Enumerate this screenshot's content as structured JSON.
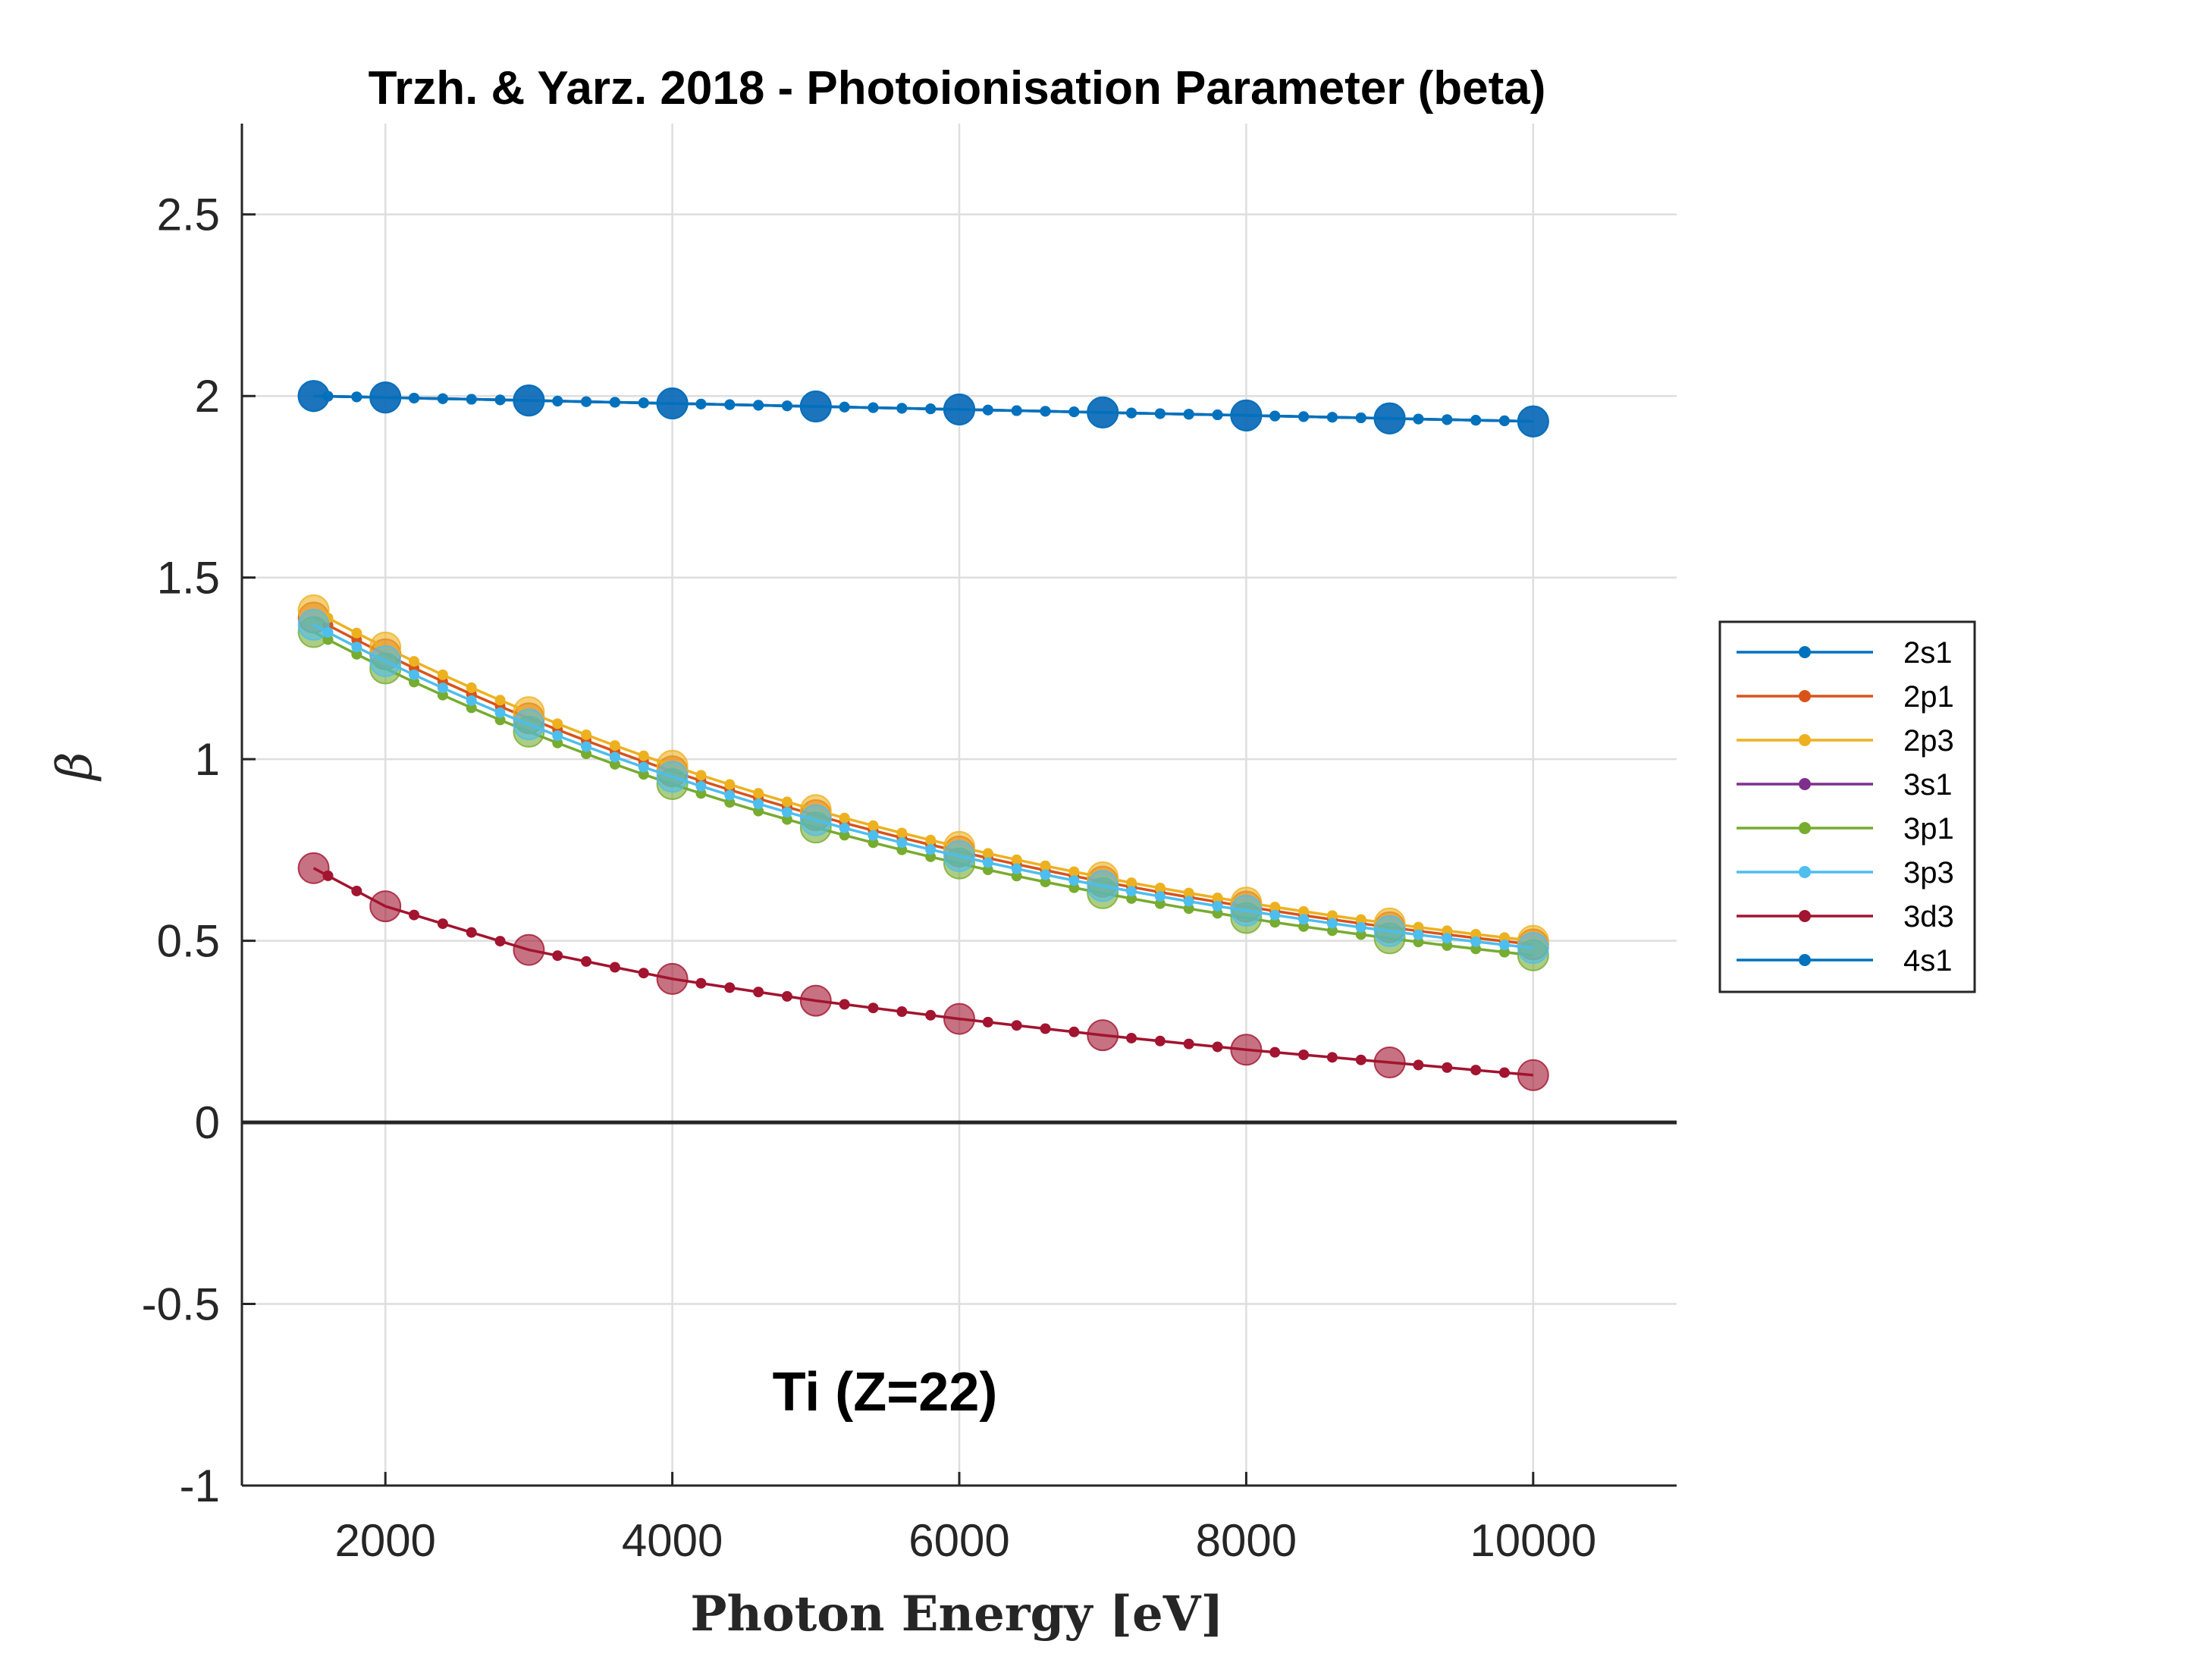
{
  "chart_data": {
    "type": "line",
    "title": "Trzh. & Yarz. 2018 - Photoionisation Parameter (beta)",
    "xlabel": "Photon Energy [eV]",
    "ylabel": "β",
    "annotation": "Ti (Z=22)",
    "xlim": [
      1000,
      11000
    ],
    "ylim": [
      -1,
      2.75
    ],
    "xticks": [
      2000,
      4000,
      6000,
      8000,
      10000
    ],
    "xtick_labels": [
      "2000",
      "4000",
      "6000",
      "8000",
      "10000"
    ],
    "yticks": [
      -1,
      -0.5,
      0,
      0.5,
      1,
      1.5,
      2,
      2.5
    ],
    "ytick_labels": [
      "-1",
      "-0.5",
      "0",
      "0.5",
      "1",
      "1.5",
      "2",
      "2.5"
    ],
    "grid": true,
    "zero_line": true,
    "legend_position": "right",
    "x_big_markers": [
      1500,
      2000,
      3000,
      4000,
      5000,
      6000,
      7000,
      8000,
      9000,
      10000
    ],
    "series": [
      {
        "name": "2s1",
        "color": "#0072BD",
        "endpoints": [
          2.0,
          1.93
        ]
      },
      {
        "name": "2p1",
        "color": "#D95319",
        "endpoints": [
          1.39,
          0.49
        ]
      },
      {
        "name": "2p3",
        "color": "#EDB120",
        "endpoints": [
          1.41,
          0.5
        ]
      },
      {
        "name": "3s1",
        "color": "#7E2F8E",
        "endpoints": [
          2.0,
          1.93
        ]
      },
      {
        "name": "3p1",
        "color": "#77AC30",
        "endpoints": [
          1.35,
          0.46
        ]
      },
      {
        "name": "3p3",
        "color": "#4DBEEE",
        "endpoints": [
          1.37,
          0.48
        ]
      },
      {
        "name": "3d3",
        "color": "#A2142F",
        "values": [
          0.7,
          0.595,
          0.475,
          0.395,
          0.335,
          0.285,
          0.24,
          0.2,
          0.165,
          0.13
        ]
      },
      {
        "name": "4s1",
        "color": "#0072BD",
        "endpoints": [
          2.0,
          1.93
        ]
      }
    ]
  }
}
